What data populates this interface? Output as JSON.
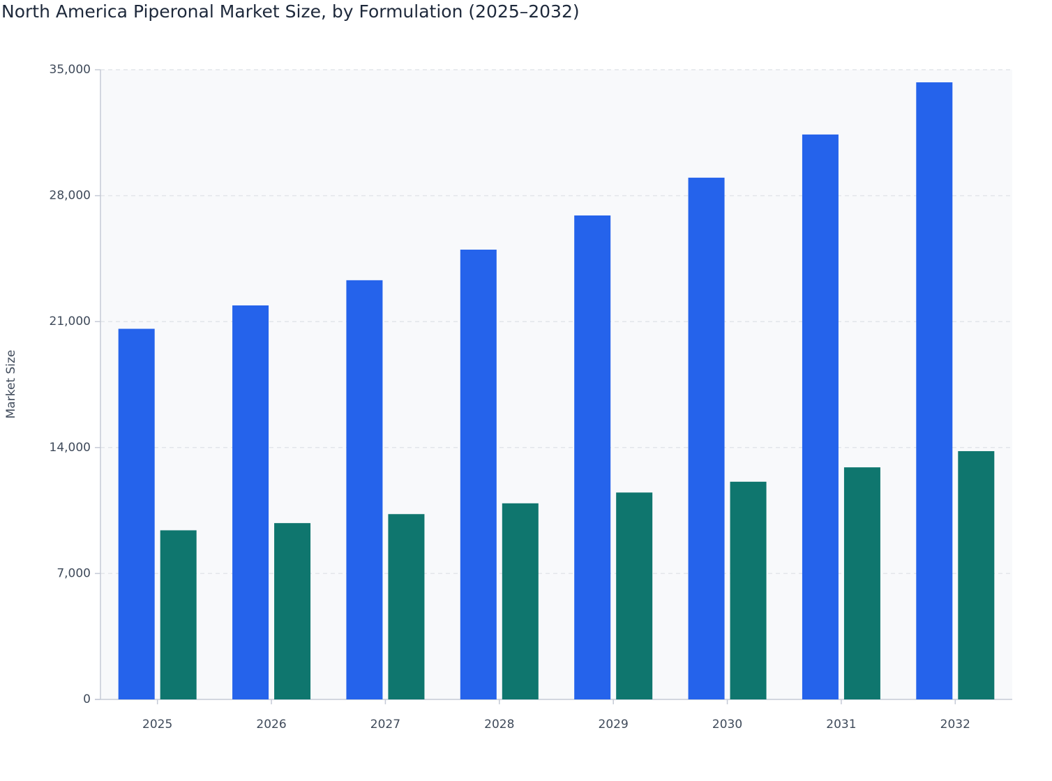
{
  "chart_data": {
    "type": "bar",
    "title": "North America Piperonal Market Size, by Formulation (2025–2032)",
    "y_label": "Market Size",
    "categories": [
      "2025",
      "2026",
      "2027",
      "2028",
      "2029",
      "2030",
      "2031",
      "2032"
    ],
    "series": [
      {
        "color": "#2563eb",
        "values": [
          20600,
          21900,
          23300,
          25000,
          26900,
          29000,
          31400,
          34300
        ]
      },
      {
        "color": "#0f766e",
        "values": [
          9400,
          9800,
          10300,
          10900,
          11500,
          12100,
          12900,
          13800
        ]
      }
    ],
    "ylim": [
      0,
      35000
    ],
    "yticks": [
      0,
      {
        "value": 7000,
        "label": "7,000"
      },
      {
        "value": 14000,
        "label": "14,000"
      },
      {
        "value": 21000,
        "label": "21,000"
      },
      {
        "value": 28000,
        "label": "28,000"
      },
      {
        "value": 35000,
        "label": "35,000"
      }
    ],
    "grid": true
  }
}
